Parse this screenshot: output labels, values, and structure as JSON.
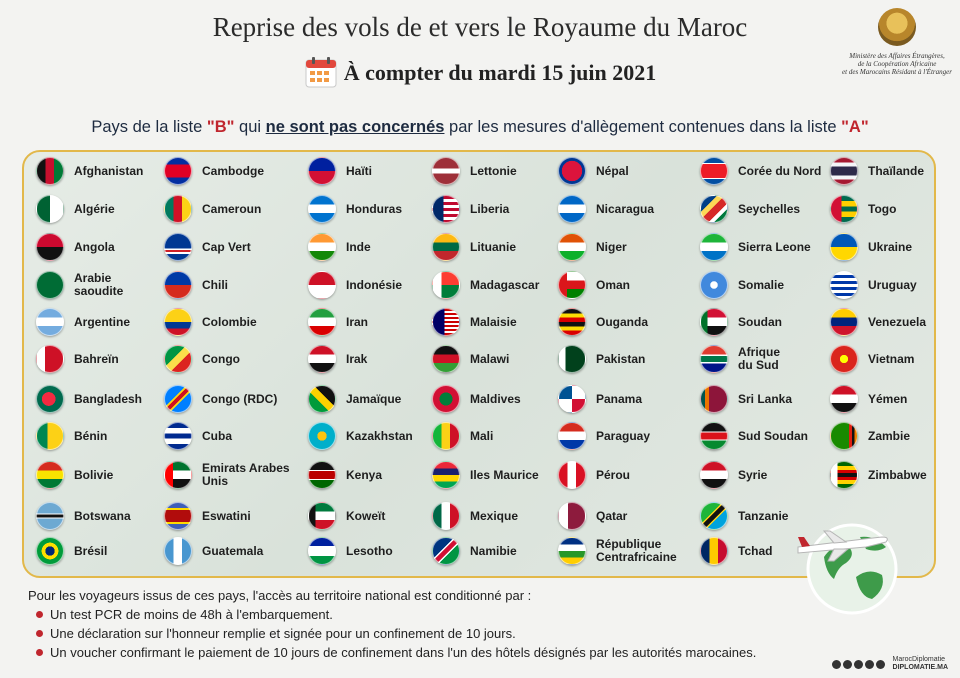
{
  "header": {
    "title": "Reprise des vols de et vers le Royaume du Maroc",
    "date_line": "À compter du mardi 15 juin 2021"
  },
  "ministry": {
    "line1": "Ministère des Affaires Étrangères,",
    "line2": "de la Coopération Africaine",
    "line3": "et des Marocains Résidant à l'Étranger"
  },
  "intro": {
    "pre": "Pays de la liste ",
    "list_b": "\"B\"",
    "mid": " qui ",
    "emph": "ne sont pas concernés",
    "post": " par les mesures d'allègement contenues dans la liste ",
    "list_a": "\"A\""
  },
  "countries": [
    {
      "name": "Afghanistan",
      "flag": "linear-gradient(90deg,#111 0 33%,#c8102e 33% 66%,#007a36 66%)"
    },
    {
      "name": "Algérie",
      "flag": "linear-gradient(90deg,#006233 0 50%,#fff 50%)"
    },
    {
      "name": "Angola",
      "flag": "linear-gradient(180deg,#cc092f 0 50%,#111 50%)"
    },
    {
      "name": "Arabie\nsaoudite",
      "flag": "#006c35"
    },
    {
      "name": "Argentine",
      "flag": "linear-gradient(180deg,#74acdf 0 33%,#fff 33% 66%,#74acdf 66%)"
    },
    {
      "name": "Bahreïn",
      "flag": "linear-gradient(90deg,#fff 0 30%,#ce1126 30%)"
    },
    {
      "name": "Bangladesh",
      "flag": "radial-gradient(circle at 45% 50%,#f42a41 0 35%,#006a4e 36%)"
    },
    {
      "name": "Bénin",
      "flag": "linear-gradient(90deg,#008751 0 40%,#fcd116 40%)"
    },
    {
      "name": "Bolivie",
      "flag": "linear-gradient(180deg,#d52b1e 0 33%,#f9e300 33% 66%,#007934 66%)"
    },
    {
      "name": "Botswana",
      "flag": "linear-gradient(180deg,#6da9d2 0 40%,#fff 40% 44%,#111 44% 56%,#fff 56% 60%,#6da9d2 60%)"
    },
    {
      "name": "Brésil",
      "flag": "radial-gradient(circle,#002776 0 25%,#fedf00 26% 45%,#009b3a 46%)"
    },
    {
      "name": "Cambodge",
      "flag": "linear-gradient(180deg,#032ea1 0 25%,#e00025 25% 75%,#032ea1 75%)"
    },
    {
      "name": "Cameroun",
      "flag": "linear-gradient(90deg,#007a5e 0 33%,#ce1126 33% 66%,#fcd116 66%)"
    },
    {
      "name": "Cap Vert",
      "flag": "linear-gradient(180deg,#003893 0 55%,#fff 55% 62%,#cf2027 62% 70%,#fff 70% 77%,#003893 77%)"
    },
    {
      "name": "Chili",
      "flag": "linear-gradient(180deg,#0039a6 0 50%,#d52b1e 50%)"
    },
    {
      "name": "Colombie",
      "flag": "linear-gradient(180deg,#fcd116 0 50%,#003893 50% 75%,#ce1126 75%)"
    },
    {
      "name": "Congo",
      "flag": "linear-gradient(135deg,#009543 0 40%,#fbde4a 40% 60%,#dc241f 60%)"
    },
    {
      "name": "Congo (RDC)",
      "flag": "linear-gradient(135deg,#007fff 0 40%,#f7d618 40% 45%,#ce1021 45% 55%,#f7d618 55% 60%,#007fff 60%)"
    },
    {
      "name": "Cuba",
      "flag": "linear-gradient(180deg,#002a8f 0 20%,#fff 20% 40%,#002a8f 40% 60%,#fff 60% 80%,#002a8f 80%)"
    },
    {
      "name": "Emirats Arabes\nUnis",
      "flag": "linear-gradient(90deg,#ff0000 0 30%,transparent 30%),linear-gradient(180deg,#00732f 0 33%,#fff 33% 66%,#111 66%)"
    },
    {
      "name": "Eswatini",
      "flag": "linear-gradient(180deg,#3e5eb9 0 20%,#ffd900 20% 26%,#b10c0c 26% 74%,#ffd900 74% 80%,#3e5eb9 80%)"
    },
    {
      "name": "Guatemala",
      "flag": "linear-gradient(90deg,#4997d0 0 33%,#fff 33% 66%,#4997d0 66%)"
    },
    {
      "name": "Haïti",
      "flag": "linear-gradient(180deg,#00209f 0 50%,#d21034 50%)"
    },
    {
      "name": "Honduras",
      "flag": "linear-gradient(180deg,#0073cf 0 33%,#fff 33% 66%,#0073cf 66%)"
    },
    {
      "name": "Inde",
      "flag": "linear-gradient(180deg,#ff9933 0 33%,#fff 33% 66%,#138808 66%)"
    },
    {
      "name": "Indonésie",
      "flag": "linear-gradient(180deg,#ce1126 0 50%,#fff 50%)"
    },
    {
      "name": "Iran",
      "flag": "linear-gradient(180deg,#239f40 0 33%,#fff 33% 66%,#da0000 66%)"
    },
    {
      "name": "Irak",
      "flag": "linear-gradient(180deg,#ce1126 0 33%,#fff 33% 66%,#111 66%)"
    },
    {
      "name": "Jamaïque",
      "flag": "linear-gradient(45deg,#009b3a 0 40%,#fed100 40% 60%,#111 60%)"
    },
    {
      "name": "Kazakhstan",
      "flag": "radial-gradient(circle,#fec50c 0 25%,#00afca 26%)"
    },
    {
      "name": "Kenya",
      "flag": "linear-gradient(180deg,#111 0 30%,#fff 30% 34%,#bb0000 34% 66%,#fff 66% 70%,#006600 70%)"
    },
    {
      "name": "Koweït",
      "flag": "linear-gradient(90deg,#111 0 25%,transparent 25%),linear-gradient(180deg,#007a3d 0 33%,#fff 33% 66%,#ce1126 66%)"
    },
    {
      "name": "Lesotho",
      "flag": "linear-gradient(180deg,#00209f 0 30%,#fff 30% 70%,#009543 70%)"
    },
    {
      "name": "Lettonie",
      "flag": "linear-gradient(180deg,#9e3039 0 40%,#fff 40% 60%,#9e3039 60%)"
    },
    {
      "name": "Liberia",
      "flag": "linear-gradient(90deg,#002868 0 40%,transparent 40%),repeating-linear-gradient(180deg,#bf0a30 0 3px,#fff 3px 6px)"
    },
    {
      "name": "Lituanie",
      "flag": "linear-gradient(180deg,#fdb913 0 33%,#006a44 33% 66%,#c1272d 66%)"
    },
    {
      "name": "Madagascar",
      "flag": "linear-gradient(90deg,#fff 0 33%,transparent 33%),linear-gradient(180deg,#fc3d32 0 50%,#007e3a 50%)"
    },
    {
      "name": "Malaisie",
      "flag": "linear-gradient(90deg,#010066 0 45%,transparent 45%),repeating-linear-gradient(180deg,#cc0001 0 2px,#fff 2px 4px)"
    },
    {
      "name": "Malawi",
      "flag": "linear-gradient(180deg,#111 0 33%,#ce1126 33% 66%,#339e35 66%)"
    },
    {
      "name": "Maldives",
      "flag": "radial-gradient(circle,#007e3a 0 35%,#d21034 36%)"
    },
    {
      "name": "Mali",
      "flag": "linear-gradient(90deg,#14b53a 0 33%,#fcd116 33% 66%,#ce1126 66%)"
    },
    {
      "name": "Iles Maurice",
      "flag": "linear-gradient(180deg,#ea2839 0 25%,#1a206d 25% 50%,#ffd500 50% 75%,#00a551 75%)"
    },
    {
      "name": "Mexique",
      "flag": "linear-gradient(90deg,#006847 0 33%,#fff 33% 66%,#ce1126 66%)"
    },
    {
      "name": "Namibie",
      "flag": "linear-gradient(135deg,#003580 0 40%,#fff 40% 44%,#d21034 44% 56%,#fff 56% 60%,#009543 60%)"
    },
    {
      "name": "Népal",
      "flag": "radial-gradient(circle,#dc143c 0 55%,#003893 56%)"
    },
    {
      "name": "Nicaragua",
      "flag": "linear-gradient(180deg,#0067c6 0 33%,#fff 33% 66%,#0067c6 66%)"
    },
    {
      "name": "Niger",
      "flag": "linear-gradient(180deg,#e05206 0 33%,#fff 33% 66%,#0db02b 66%)"
    },
    {
      "name": "Oman",
      "flag": "linear-gradient(90deg,#db161b 0 30%,transparent 30%),linear-gradient(180deg,#fff 0 33%,#db161b 33% 66%,#008000 66%)"
    },
    {
      "name": "Ouganda",
      "flag": "linear-gradient(180deg,#111 0 17%,#fcdc04 17% 33%,#d90000 33% 50%,#111 50% 67%,#fcdc04 67% 83%,#d90000 83%)"
    },
    {
      "name": "Pakistan",
      "flag": "linear-gradient(90deg,#fff 0 25%,#01411c 25%)"
    },
    {
      "name": "Panama",
      "flag": "conic-gradient(#fff 0 25%,#d21034 25% 50%,#fff 50% 75%,#005293 75%)"
    },
    {
      "name": "Paraguay",
      "flag": "linear-gradient(180deg,#d52b1e 0 33%,#fff 33% 66%,#0038a8 66%)"
    },
    {
      "name": "Pérou",
      "flag": "linear-gradient(90deg,#d91023 0 33%,#fff 33% 66%,#d91023 66%)"
    },
    {
      "name": "Qatar",
      "flag": "linear-gradient(90deg,#fff 0 35%,#8d1b3d 35%)"
    },
    {
      "name": "République\nCentrafricaine",
      "flag": "linear-gradient(180deg,#003082 0 25%,#fff 25% 50%,#289728 50% 75%,#ffce00 75%)"
    },
    {
      "name": "Corée du Nord",
      "flag": "linear-gradient(180deg,#024fa2 0 20%,#fff 20% 24%,#ed1c27 24% 76%,#fff 76% 80%,#024fa2 80%)"
    },
    {
      "name": "Seychelles",
      "flag": "linear-gradient(135deg,#003f87 0 30%,#fcd856 30% 45%,#d62828 45% 65%,#fff 65% 75%,#007a3d 75%)"
    },
    {
      "name": "Sierra Leone",
      "flag": "linear-gradient(180deg,#1eb53a 0 33%,#fff 33% 66%,#0072c6 66%)"
    },
    {
      "name": "Somalie",
      "flag": "radial-gradient(circle,#fff 0 20%,#4189dd 21%)"
    },
    {
      "name": "Soudan",
      "flag": "linear-gradient(90deg,#007229 0 25%,transparent 25%),linear-gradient(180deg,#d21034 0 33%,#fff 33% 66%,#111 66%)"
    },
    {
      "name": "Afrique\ndu Sud",
      "flag": "linear-gradient(180deg,#e03c31 0 33%,#fff 33% 38%,#007749 38% 62%,#fff 62% 67%,#001489 67%)"
    },
    {
      "name": "Sri Lanka",
      "flag": "linear-gradient(90deg,#00534e 0 15%,#eb7400 15% 30%,#8d153a 30%)"
    },
    {
      "name": "Sud Soudan",
      "flag": "linear-gradient(180deg,#111 0 33%,#fff 33% 36%,#da121a 36% 64%,#fff 64% 67%,#078930 67%)"
    },
    {
      "name": "Syrie",
      "flag": "linear-gradient(180deg,#ce1126 0 33%,#fff 33% 66%,#111 66%)"
    },
    {
      "name": "Tanzanie",
      "flag": "linear-gradient(135deg,#1eb53a 0 40%,#fcd116 40% 44%,#111 44% 56%,#fcd116 56% 60%,#00a3dd 60%)"
    },
    {
      "name": "Tchad",
      "flag": "linear-gradient(90deg,#002664 0 33%,#fecb00 33% 66%,#c60c30 66%)"
    },
    {
      "name": "Thaïlande",
      "flag": "linear-gradient(180deg,#a51931 0 17%,#f4f5f8 17% 33%,#2d2a4a 33% 67%,#f4f5f8 67% 83%,#a51931 83%)"
    },
    {
      "name": "Togo",
      "flag": "linear-gradient(90deg,#d21034 0 40%,transparent 40%),linear-gradient(180deg,#006a4e 0 20%,#ffce00 20% 40%,#006a4e 40% 60%,#ffce00 60% 80%,#006a4e 80%)"
    },
    {
      "name": "Ukraine",
      "flag": "linear-gradient(180deg,#0057b7 0 50%,#ffd700 50%)"
    },
    {
      "name": "Uruguay",
      "flag": "repeating-linear-gradient(180deg,#fff 0 3px,#0038a8 3px 6px)"
    },
    {
      "name": "Venezuela",
      "flag": "linear-gradient(180deg,#ffcc00 0 33%,#00247d 33% 66%,#cf142b 66%)"
    },
    {
      "name": "Vietnam",
      "flag": "radial-gradient(circle,#ffff00 0 22%,#da251d 23%)"
    },
    {
      "name": "Yémen",
      "flag": "linear-gradient(180deg,#ce1126 0 33%,#fff 33% 66%,#111 66%)"
    },
    {
      "name": "Zambie",
      "flag": "linear-gradient(90deg,#198a00 0 70%,#de2010 70% 80%,#111 80% 90%,#ef7d00 90%)"
    },
    {
      "name": "Zimbabwe",
      "flag": "linear-gradient(90deg,#fff 0 25%,transparent 25%),linear-gradient(180deg,#006400 0 15%,#ffd200 15% 30%,#d40000 30% 42%,#111 42% 58%,#d40000 58% 70%,#ffd200 70% 85%,#006400 85%)"
    }
  ],
  "conditions": {
    "intro": "Pour les voyageurs issus de ces pays, l'accès au territoire national est conditionné par :",
    "items": [
      "Un test PCR de moins de 48h à l'embarquement.",
      "Une déclaration sur l'honneur remplie et signée pour un confinement de 10 jours.",
      "Un voucher confirmant le paiement de 10 jours de confinement dans l'un des hôtels désignés par les autorités marocaines."
    ]
  },
  "footer": {
    "handle": "MarocDiplomatie",
    "site": "DIPLOMATIE.MA"
  }
}
